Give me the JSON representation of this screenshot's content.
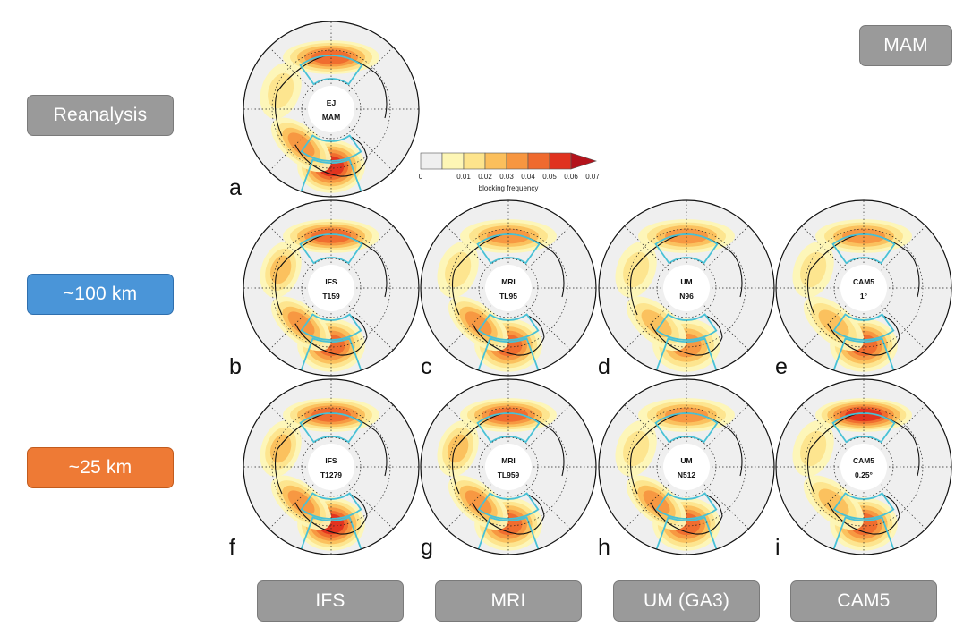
{
  "season_badge": "MAM",
  "row_labels": {
    "reanalysis": "Reanalysis",
    "res100": "~100 km",
    "res25": "~25 km"
  },
  "model_labels": [
    "IFS",
    "MRI",
    "UM (GA3)",
    "CAM5"
  ],
  "colorbar": {
    "title": "blocking frequency",
    "ticks": [
      "0",
      "0.01",
      "0.02",
      "0.03",
      "0.04",
      "0.05",
      "0.06",
      "0.07"
    ],
    "colors": [
      "#efefef",
      "#fdf6b5",
      "#fde48c",
      "#fbbf5c",
      "#f79640",
      "#ef6a2e",
      "#e0321f",
      "#b4131c"
    ]
  },
  "panels": [
    {
      "letter": "a",
      "name": "EJ",
      "res": "MAM"
    },
    {
      "letter": "b",
      "name": "IFS",
      "res": "T159"
    },
    {
      "letter": "c",
      "name": "MRI",
      "res": "TL95"
    },
    {
      "letter": "d",
      "name": "UM",
      "res": "N96"
    },
    {
      "letter": "e",
      "name": "CAM5",
      "res": "1°"
    },
    {
      "letter": "f",
      "name": "IFS",
      "res": "T1279"
    },
    {
      "letter": "g",
      "name": "MRI",
      "res": "TL959"
    },
    {
      "letter": "h",
      "name": "UM",
      "res": "N512"
    },
    {
      "letter": "i",
      "name": "CAM5",
      "res": "0.25°"
    }
  ]
}
